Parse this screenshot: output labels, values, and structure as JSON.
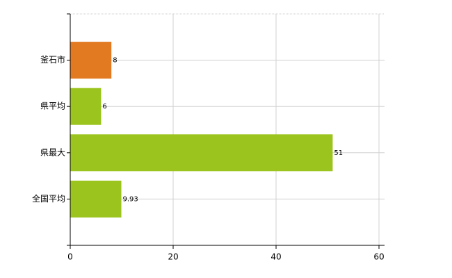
{
  "chart_data": {
    "type": "bar",
    "orientation": "horizontal",
    "categories": [
      "釜石市",
      "県平均",
      "県最大",
      "全国平均"
    ],
    "values": [
      8,
      6,
      51,
      9.93
    ],
    "colors": [
      "#e27a22",
      "#9bc41e",
      "#9bc41e",
      "#9bc41e"
    ],
    "xlim": [
      0,
      60
    ],
    "xticks": [
      0,
      20,
      40,
      60
    ],
    "grid": true
  }
}
